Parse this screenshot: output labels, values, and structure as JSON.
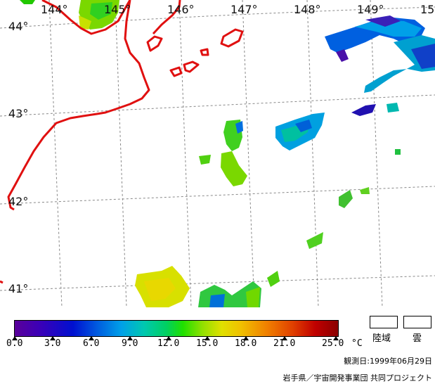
{
  "map": {
    "lon_labels": [
      "144°",
      "145°",
      "146°",
      "147°",
      "148°",
      "149°",
      "15"
    ],
    "lat_labels": [
      "44°",
      "43°",
      "42°",
      "41°"
    ],
    "coast_color": "#e01010",
    "grid_color": "#888888"
  },
  "colorbar": {
    "unit": "°C",
    "ticks": [
      "0.0",
      "3.0",
      "6.0",
      "9.0",
      "12.0",
      "15.0",
      "18.0",
      "21.0",
      "25.0"
    ]
  },
  "legend": {
    "land_label": "陸域",
    "cloud_label": "雲"
  },
  "observation_date": "観測日:1999年06月29日",
  "credit": "岩手県／宇宙開発事業団 共同プロジェクト"
}
